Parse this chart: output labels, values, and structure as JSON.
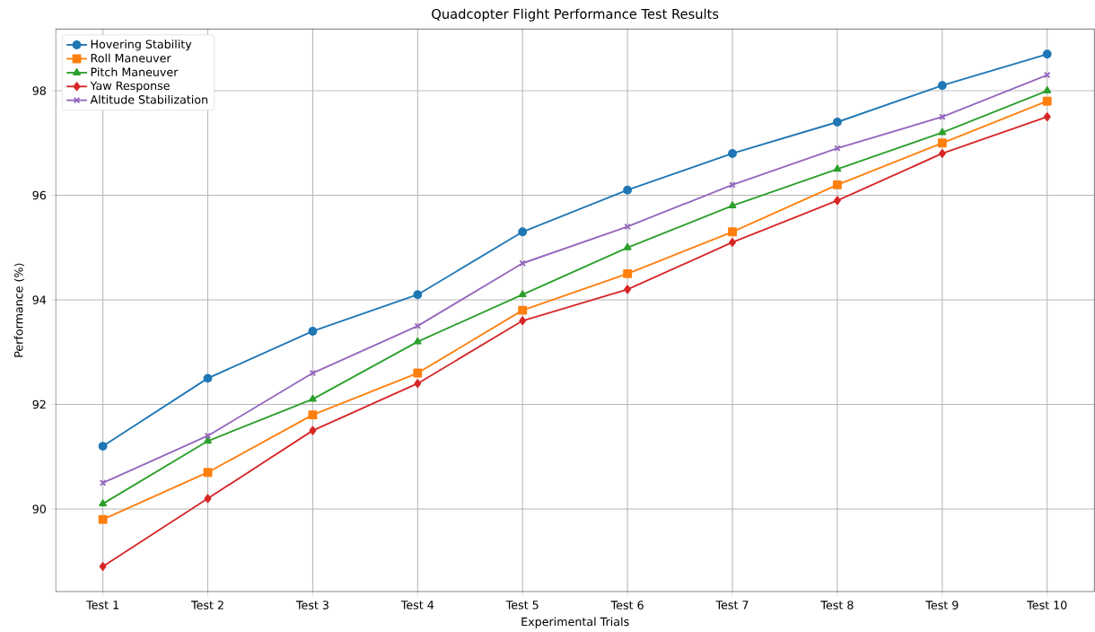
{
  "chart_data": {
    "type": "line",
    "title": "Quadcopter Flight Performance Test Results",
    "xlabel": "Experimental Trials",
    "ylabel": "Performance (%)",
    "categories": [
      "Test 1",
      "Test 2",
      "Test 3",
      "Test 4",
      "Test 5",
      "Test 6",
      "Test 7",
      "Test 8",
      "Test 9",
      "Test 10"
    ],
    "series": [
      {
        "name": "Hovering Stability",
        "color": "#1f77b4",
        "marker": "circle",
        "values": [
          91.2,
          92.5,
          93.4,
          94.1,
          95.3,
          96.1,
          96.8,
          97.4,
          98.1,
          98.7
        ]
      },
      {
        "name": "Roll Maneuver",
        "color": "#ff7f0e",
        "marker": "square",
        "values": [
          89.8,
          90.7,
          91.8,
          92.6,
          93.8,
          94.5,
          95.3,
          96.2,
          97.0,
          97.8
        ]
      },
      {
        "name": "Pitch Maneuver",
        "color": "#2ca02c",
        "marker": "triangle",
        "values": [
          90.1,
          91.3,
          92.1,
          93.2,
          94.1,
          95.0,
          95.8,
          96.5,
          97.2,
          98.0
        ]
      },
      {
        "name": "Yaw Response",
        "color": "#d62728",
        "marker": "diamond",
        "values": [
          88.9,
          90.2,
          91.5,
          92.4,
          93.6,
          94.2,
          95.1,
          95.9,
          96.8,
          97.5
        ]
      },
      {
        "name": "Altitude Stabilization",
        "color": "#9467bd",
        "marker": "cross",
        "values": [
          90.5,
          91.4,
          92.6,
          93.5,
          94.7,
          95.4,
          96.2,
          96.9,
          97.5,
          98.3
        ]
      }
    ],
    "ylim": [
      88.42,
      99.18
    ],
    "yticks": [
      90,
      92,
      94,
      96,
      98
    ],
    "grid": true,
    "legend": "top left",
    "line_style": "solid"
  }
}
